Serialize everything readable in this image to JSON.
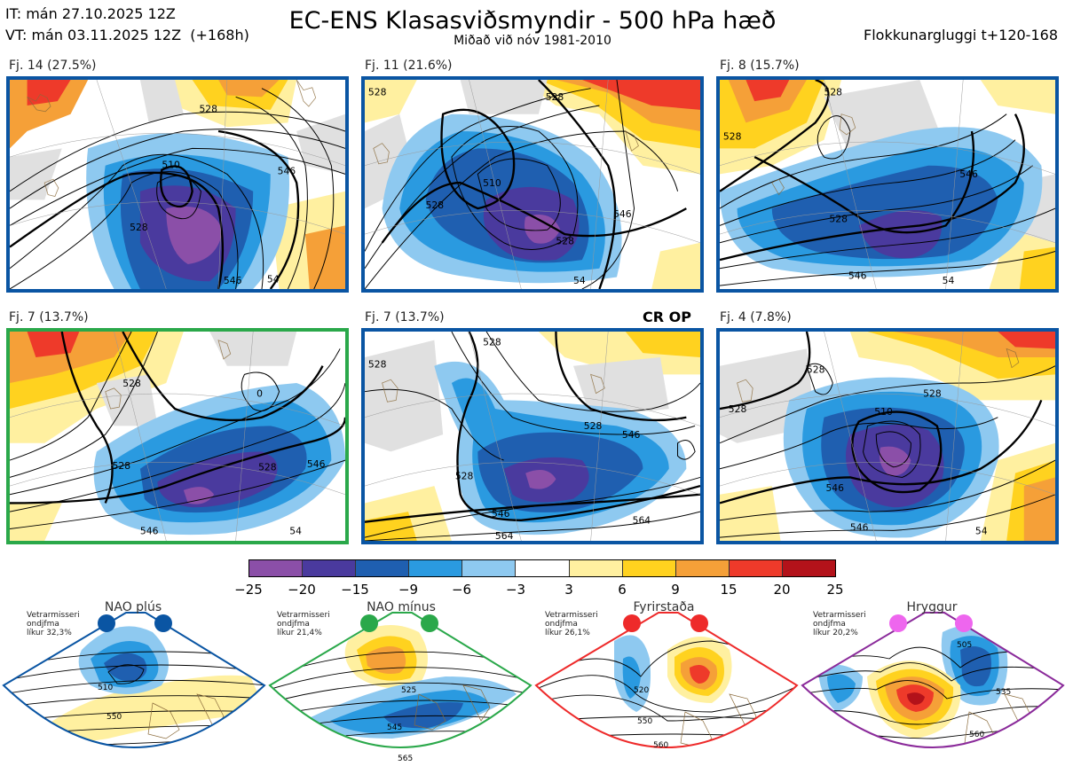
{
  "header": {
    "it": "IT: mán 27.10.2025 12Z",
    "vt": "VT: mán 03.11.2025 12Z",
    "vt_hours": "(+168h)",
    "title": "EC-ENS Klasasviðsmyndir - 500 hPa hæð",
    "subtitle": "Miðað við nóv 1981-2010",
    "window": "Flokkunargluggi t+120-168"
  },
  "panels": [
    {
      "label": "Fj. 14 (27.5%)",
      "border": "#0a55a3",
      "contours": [
        "510",
        "528",
        "528",
        "546",
        "546",
        "54"
      ]
    },
    {
      "label": "Fj. 11 (21.6%)",
      "border": "#0a55a3",
      "contours": [
        "528",
        "528",
        "510",
        "528",
        "528",
        "546",
        "54"
      ]
    },
    {
      "label": "Fj. 8 (15.7%)",
      "border": "#0a55a3",
      "contours": [
        "528",
        "528",
        "528",
        "546",
        "546",
        "54"
      ]
    },
    {
      "label": "Fj. 7 (13.7%)",
      "border": "#2aa84a",
      "contours": [
        "528",
        "0",
        "528",
        "528",
        "546",
        "546",
        "54"
      ]
    },
    {
      "label": "Fj. 7 (13.7%)",
      "border": "#0a55a3",
      "contours": [
        "528",
        "528",
        "528",
        "546",
        "528",
        "546",
        "564",
        "564"
      ]
    },
    {
      "label": "Fj. 4 (7.8%)",
      "border": "#0a55a3",
      "contours": [
        "528",
        "528",
        "510",
        "528",
        "546",
        "546",
        "54"
      ]
    }
  ],
  "cr_op": "CR OP",
  "colorbar": {
    "colors": [
      "#8b4fa8",
      "#4a3a9e",
      "#1f5fb0",
      "#2a9ae0",
      "#8ec9f0",
      "#ffffff",
      "#fff0a0",
      "#ffd21f",
      "#f5a038",
      "#ee3a2a",
      "#b3121a"
    ],
    "ticks": [
      "−25",
      "−20",
      "−15",
      "−9",
      "−6",
      "−3",
      "3",
      "6",
      "9",
      "15",
      "20",
      "25"
    ]
  },
  "regimes": [
    {
      "name": "NAO plús",
      "dot": "#0a55a3",
      "border": "#0a55a3",
      "l1": "Vetrarmisseri",
      "l2": "ondjfma",
      "l3": "líkur 32,3%",
      "contours": [
        "510",
        "550"
      ]
    },
    {
      "name": "NAO mínus",
      "dot": "#2aa84a",
      "border": "#2aa84a",
      "l1": "Vetrarmisseri",
      "l2": "ondjfma",
      "l3": "líkur 21,4%",
      "contours": [
        "525",
        "545",
        "565"
      ]
    },
    {
      "name": "Fyrirstaða",
      "dot": "#ee2a2a",
      "border": "#ee2a2a",
      "l1": "Vetrarmisseri",
      "l2": "ondjfma",
      "l3": "líkur 26,1%",
      "contours": [
        "520",
        "550",
        "560"
      ]
    },
    {
      "name": "Hryggur",
      "dot": "#ee66ee",
      "border": "#8a2a9a",
      "l1": "Vetrarmisseri",
      "l2": "ondjfma",
      "l3": "líkur 20,2%",
      "contours": [
        "505",
        "535",
        "560"
      ]
    }
  ]
}
